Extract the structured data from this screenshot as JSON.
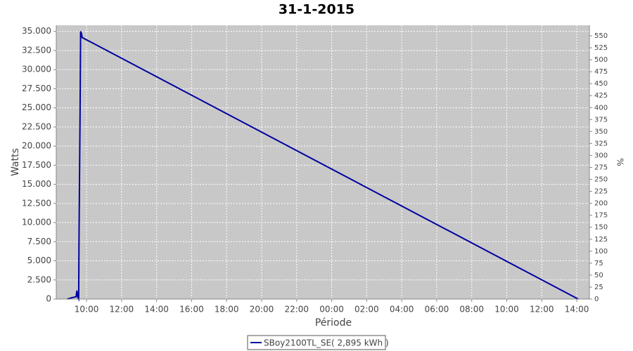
{
  "chart_data": {
    "type": "line",
    "title": "31-1-2015",
    "x_label": "Période",
    "y_label": "Watts",
    "y2_label": "%",
    "x": [
      8.9,
      9.2,
      9.4,
      9.45,
      9.5,
      9.55,
      9.57,
      9.63,
      9.66,
      9.7,
      9.75,
      38.08
    ],
    "series": [
      {
        "name": "SBoy2100TL_SE( 2,895 kWh )",
        "color": "#0000a0",
        "values": [
          0,
          200,
          300,
          1100,
          200,
          0,
          8000,
          24500,
          35000,
          34800,
          34200,
          0
        ]
      }
    ],
    "xlim": [
      8.27,
      38.72
    ],
    "xticks": [
      {
        "value": 10,
        "label": "10:00"
      },
      {
        "value": 12,
        "label": "12:00"
      },
      {
        "value": 14,
        "label": "14:00"
      },
      {
        "value": 16,
        "label": "16:00"
      },
      {
        "value": 18,
        "label": "18:00"
      },
      {
        "value": 20,
        "label": "20:00"
      },
      {
        "value": 22,
        "label": "22:00"
      },
      {
        "value": 24,
        "label": "00:00"
      },
      {
        "value": 26,
        "label": "02:00"
      },
      {
        "value": 28,
        "label": "04:00"
      },
      {
        "value": 30,
        "label": "06:00"
      },
      {
        "value": 32,
        "label": "08:00"
      },
      {
        "value": 34,
        "label": "10:00"
      },
      {
        "value": 36,
        "label": "12:00"
      },
      {
        "value": 38,
        "label": "14:00"
      }
    ],
    "ylim": [
      0,
      35800
    ],
    "yticks": [
      0,
      {
        "value": 2500,
        "label": "2.500"
      },
      {
        "value": 5000,
        "label": "5.000"
      },
      {
        "value": 7500,
        "label": "7.500"
      },
      {
        "value": 10000,
        "label": "10.000"
      },
      {
        "value": 12500,
        "label": "12.500"
      },
      {
        "value": 15000,
        "label": "15.000"
      },
      {
        "value": 17500,
        "label": "17.500"
      },
      {
        "value": 20000,
        "label": "20.000"
      },
      {
        "value": 22500,
        "label": "22.500"
      },
      {
        "value": 25000,
        "label": "25.000"
      },
      {
        "value": 27500,
        "label": "27.500"
      },
      {
        "value": 30000,
        "label": "30.000"
      },
      {
        "value": 32500,
        "label": "32.500"
      },
      {
        "value": 35000,
        "label": "35.000"
      }
    ],
    "y2lim": [
      0,
      572
    ],
    "y2ticks": [
      0,
      25,
      50,
      75,
      100,
      125,
      150,
      175,
      200,
      225,
      250,
      275,
      300,
      325,
      350,
      375,
      400,
      425,
      450,
      475,
      500,
      525,
      550
    ],
    "grid": true
  }
}
